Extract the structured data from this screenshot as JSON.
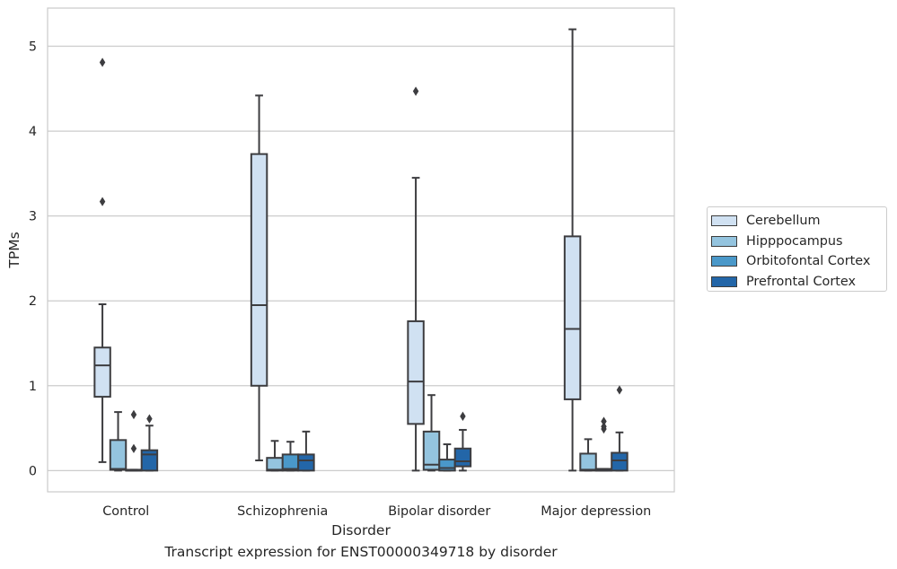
{
  "caption": "Transcript expression for ENST00000349718 by disorder",
  "chart_data": {
    "type": "box",
    "xlabel": "Disorder",
    "ylabel": "TPMs",
    "ylim": [
      -0.25,
      5.45
    ],
    "yticks": [
      0,
      1,
      2,
      3,
      4,
      5
    ],
    "grid": "horizontal",
    "legend_position": "right",
    "categories": [
      "Control",
      "Schizophrenia",
      "Bipolar disorder",
      "Major depression"
    ],
    "series": [
      {
        "name": "Cerebellum",
        "color": "#d0e1f2",
        "boxes": [
          {
            "whislo": 0.1,
            "q1": 0.87,
            "med": 1.24,
            "q3": 1.45,
            "whishi": 1.96,
            "fliers": [
              3.17,
              4.81
            ]
          },
          {
            "whislo": 0.12,
            "q1": 1.0,
            "med": 1.95,
            "q3": 3.73,
            "whishi": 4.42,
            "fliers": []
          },
          {
            "whislo": 0.0,
            "q1": 0.55,
            "med": 1.05,
            "q3": 1.76,
            "whishi": 3.45,
            "fliers": [
              4.47
            ]
          },
          {
            "whislo": 0.0,
            "q1": 0.84,
            "med": 1.67,
            "q3": 2.76,
            "whishi": 5.2,
            "fliers": []
          }
        ]
      },
      {
        "name": "Hipppocampus",
        "color": "#94c4df",
        "boxes": [
          {
            "whislo": 0.0,
            "q1": 0.01,
            "med": 0.02,
            "q3": 0.36,
            "whishi": 0.69,
            "fliers": []
          },
          {
            "whislo": 0.0,
            "q1": 0.0,
            "med": 0.01,
            "q3": 0.15,
            "whishi": 0.35,
            "fliers": []
          },
          {
            "whislo": 0.0,
            "q1": 0.01,
            "med": 0.07,
            "q3": 0.46,
            "whishi": 0.89,
            "fliers": []
          },
          {
            "whislo": 0.0,
            "q1": 0.0,
            "med": 0.01,
            "q3": 0.2,
            "whishi": 0.37,
            "fliers": []
          }
        ]
      },
      {
        "name": "Orbitofontal Cortex",
        "color": "#4a98c9",
        "boxes": [
          {
            "whislo": 0.0,
            "q1": 0.0,
            "med": 0.0,
            "q3": 0.01,
            "whishi": 0.01,
            "fliers": [
              0.26,
              0.66
            ]
          },
          {
            "whislo": 0.0,
            "q1": 0.0,
            "med": 0.02,
            "q3": 0.19,
            "whishi": 0.34,
            "fliers": []
          },
          {
            "whislo": 0.0,
            "q1": 0.0,
            "med": 0.03,
            "q3": 0.13,
            "whishi": 0.31,
            "fliers": []
          },
          {
            "whislo": 0.0,
            "q1": 0.0,
            "med": 0.0,
            "q3": 0.02,
            "whishi": 0.02,
            "fliers": [
              0.49,
              0.52,
              0.58
            ]
          }
        ]
      },
      {
        "name": "Prefrontal Cortex",
        "color": "#2366a8",
        "boxes": [
          {
            "whislo": 0.0,
            "q1": 0.0,
            "med": 0.19,
            "q3": 0.24,
            "whishi": 0.53,
            "fliers": [
              0.61
            ]
          },
          {
            "whislo": 0.0,
            "q1": 0.0,
            "med": 0.12,
            "q3": 0.19,
            "whishi": 0.46,
            "fliers": []
          },
          {
            "whislo": 0.0,
            "q1": 0.05,
            "med": 0.11,
            "q3": 0.26,
            "whishi": 0.48,
            "fliers": [
              0.64
            ]
          },
          {
            "whislo": 0.0,
            "q1": 0.0,
            "med": 0.12,
            "q3": 0.21,
            "whishi": 0.45,
            "fliers": [
              0.95
            ]
          }
        ]
      }
    ]
  }
}
